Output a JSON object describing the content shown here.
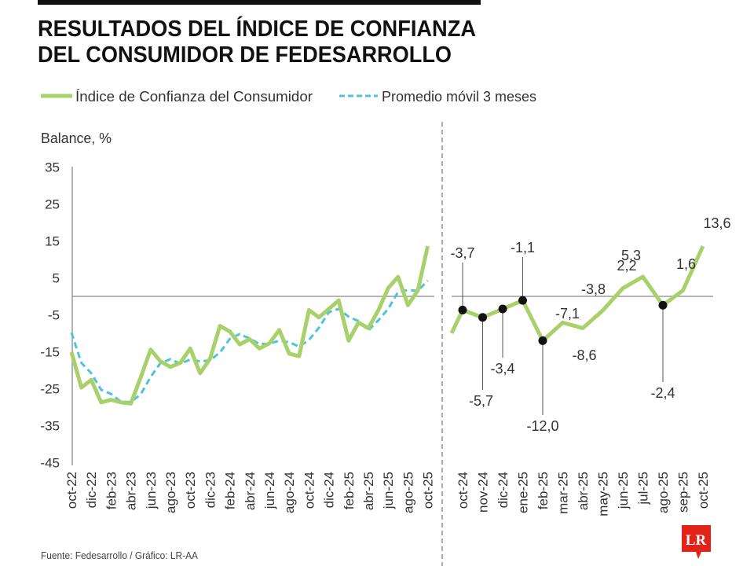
{
  "title": {
    "line1": "RESULTADOS DEL ÍNDICE DE CONFIANZA",
    "line2": "DEL CONSUMIDOR DE FEDESARROLLO"
  },
  "legend": {
    "series1": "Índice de Confianza del Consumidor",
    "series2": "Promedio móvil 3 meses"
  },
  "ylabel": "Balance, %",
  "footer": "Fuente: Fedesarrollo / Gráfico: LR-AA",
  "logo": "LR",
  "colors": {
    "index": "#a9d16b",
    "moving_average": "#4fc3dc",
    "logo": "#e2231a"
  },
  "chart_data": [
    {
      "type": "line",
      "ylabel": "Balance, %",
      "ylim": [
        -45,
        35
      ],
      "yticks": [
        35,
        25,
        15,
        5,
        -5,
        -15,
        -25,
        -35,
        -45
      ],
      "x": [
        "oct-22",
        "nov-22",
        "dic-22",
        "ene-23",
        "feb-23",
        "mar-23",
        "abr-23",
        "may-23",
        "jun-23",
        "jul-23",
        "ago-23",
        "sep-23",
        "oct-23",
        "nov-23",
        "dic-23",
        "ene-24",
        "feb-24",
        "mar-24",
        "abr-24",
        "may-24",
        "jun-24",
        "jul-24",
        "ago-24",
        "sep-24",
        "oct-24",
        "nov-24",
        "dic-24",
        "ene-25",
        "feb-25",
        "mar-25",
        "abr-25",
        "may-25",
        "jun-25",
        "jul-25",
        "ago-25",
        "sep-25",
        "oct-25"
      ],
      "xtick_labels": [
        "oct-22",
        "dic-22",
        "feb-23",
        "abr-23",
        "jun-23",
        "ago-23",
        "oct-23",
        "dic-23",
        "feb-24",
        "abr-24",
        "jun-24",
        "ago-24",
        "oct-24",
        "dic-24",
        "feb-25",
        "abr-25",
        "jun-25",
        "ago-25",
        "oct-25"
      ],
      "series": [
        {
          "name": "Índice de Confianza del Consumidor",
          "style": "solid",
          "values": [
            -15.1,
            -24.7,
            -22.6,
            -28.7,
            -28.0,
            -28.7,
            -29.0,
            -21.9,
            -14.4,
            -17.6,
            -19.1,
            -18.0,
            -14.1,
            -20.8,
            -16.9,
            -8.0,
            -9.5,
            -13.0,
            -11.6,
            -14.1,
            -12.7,
            -9.1,
            -15.5,
            -16.2,
            -3.7,
            -5.7,
            -3.4,
            -1.1,
            -12.0,
            -7.1,
            -8.6,
            -3.8,
            2.2,
            5.3,
            -2.4,
            1.6,
            13.6
          ]
        },
        {
          "name": "Promedio móvil 3 meses",
          "style": "dashed",
          "values": [
            -9.8,
            -18.0,
            -20.8,
            -25.3,
            -26.4,
            -28.5,
            -28.6,
            -26.5,
            -21.8,
            -18.0,
            -17.0,
            -18.2,
            -17.1,
            -17.6,
            -17.3,
            -15.2,
            -11.5,
            -10.2,
            -11.4,
            -12.9,
            -12.8,
            -12.0,
            -12.4,
            -13.6,
            -11.8,
            -8.5,
            -4.3,
            -3.4,
            -5.5,
            -6.7,
            -9.2,
            -6.5,
            -3.4,
            1.2,
            1.7,
            1.5,
            4.3
          ]
        }
      ],
      "zero_line": true,
      "grid": false
    },
    {
      "type": "line",
      "x": [
        "oct-24",
        "nov-24",
        "dic-24",
        "ene-25",
        "feb-25",
        "mar-25",
        "abr-25",
        "may-25",
        "jun-25",
        "jul-25",
        "ago-25",
        "sep-25",
        "oct-25"
      ],
      "series": [
        {
          "name": "Índice de Confianza del Consumidor",
          "values": [
            -3.7,
            -5.7,
            -3.4,
            -1.1,
            -12.0,
            -7.1,
            -8.6,
            -3.8,
            2.2,
            5.3,
            -2.4,
            1.6,
            13.6
          ],
          "data_labels": [
            "-3,7",
            "-5,7",
            "-3,4",
            "-1,1",
            "-12,0",
            "-7,1",
            "-8,6",
            "-3,8",
            "2,2",
            "5,3",
            "-2,4",
            "1,6",
            "13,6"
          ],
          "marked_points": [
            "oct-24",
            "nov-24",
            "dic-24",
            "ene-25",
            "feb-25",
            "ago-25"
          ]
        }
      ],
      "zero_line": true
    }
  ]
}
